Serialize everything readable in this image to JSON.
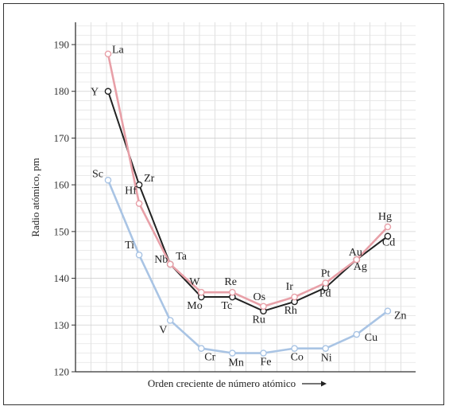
{
  "chart_data": {
    "type": "line",
    "xlabel": "Orden creciente de número atómico",
    "ylabel": "Radio atómico, pm",
    "ylim": [
      120,
      195
    ],
    "yticks": [
      120,
      130,
      140,
      150,
      160,
      170,
      180,
      190
    ],
    "grid": true,
    "series": [
      {
        "row": "period4",
        "color": "#a9c4e4",
        "points": [
          {
            "label": "Sc",
            "x": 0,
            "y": 161
          },
          {
            "label": "Ti",
            "x": 1,
            "y": 145
          },
          {
            "label": "V",
            "x": 2,
            "y": 131
          },
          {
            "label": "Cr",
            "x": 3,
            "y": 125
          },
          {
            "label": "Mn",
            "x": 4,
            "y": 124
          },
          {
            "label": "Fe",
            "x": 5,
            "y": 124
          },
          {
            "label": "Co",
            "x": 6,
            "y": 125
          },
          {
            "label": "Ni",
            "x": 7,
            "y": 125
          },
          {
            "label": "Cu",
            "x": 8,
            "y": 128
          },
          {
            "label": "Zn",
            "x": 9,
            "y": 133
          }
        ]
      },
      {
        "row": "period5",
        "color": "#222222",
        "points": [
          {
            "label": "Y",
            "x": 0,
            "y": 180
          },
          {
            "label": "Zr",
            "x": 1,
            "y": 160
          },
          {
            "label": "Nb",
            "x": 2,
            "y": 143
          },
          {
            "label": "Mo",
            "x": 3,
            "y": 136
          },
          {
            "label": "Tc",
            "x": 4,
            "y": 136
          },
          {
            "label": "Ru",
            "x": 5,
            "y": 133
          },
          {
            "label": "Rh",
            "x": 6,
            "y": 135
          },
          {
            "label": "Pd",
            "x": 7,
            "y": 138
          },
          {
            "label": "Ag",
            "x": 8,
            "y": 144
          },
          {
            "label": "Cd",
            "x": 9,
            "y": 149
          }
        ]
      },
      {
        "row": "period6",
        "color": "#e8a0a8",
        "points": [
          {
            "label": "La",
            "x": 0,
            "y": 188
          },
          {
            "label": "Hf",
            "x": 1,
            "y": 156
          },
          {
            "label": "Ta",
            "x": 2,
            "y": 143
          },
          {
            "label": "W",
            "x": 3,
            "y": 137
          },
          {
            "label": "Re",
            "x": 4,
            "y": 137
          },
          {
            "label": "Os",
            "x": 5,
            "y": 134
          },
          {
            "label": "Ir",
            "x": 6,
            "y": 136
          },
          {
            "label": "Pt",
            "x": 7,
            "y": 139
          },
          {
            "label": "Au",
            "x": 8,
            "y": 144
          },
          {
            "label": "Hg",
            "x": 9,
            "y": 151
          }
        ]
      }
    ]
  }
}
